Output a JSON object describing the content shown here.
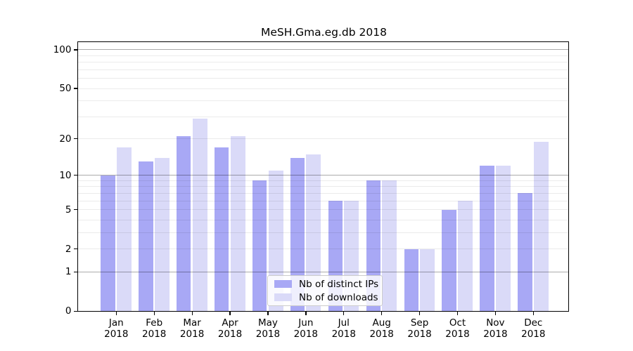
{
  "title": "MeSH.Gma.eg.db 2018",
  "colors": {
    "ips_bar": "#a8a8f5",
    "downloads_bar": "#dadaf8",
    "grid_major": "rgba(0,0,0,0.33)",
    "grid_minor": "rgba(0,0,0,0.08)",
    "axis": "#000000",
    "background": "#ffffff"
  },
  "legend": {
    "entries": [
      {
        "label": "Nb of distinct IPs",
        "series": "ips"
      },
      {
        "label": "Nb of downloads",
        "series": "downloads"
      }
    ]
  },
  "chart_data": {
    "type": "bar",
    "title": "MeSH.Gma.eg.db 2018",
    "categories": [
      "Jan",
      "Feb",
      "Mar",
      "Apr",
      "May",
      "Jun",
      "Jul",
      "Aug",
      "Sep",
      "Oct",
      "Nov",
      "Dec"
    ],
    "category_sublabel": "2018",
    "series": [
      {
        "name": "Nb of distinct IPs",
        "values": [
          10,
          13,
          21,
          17,
          9,
          14,
          6,
          9,
          2,
          5,
          12,
          7
        ]
      },
      {
        "name": "Nb of downloads",
        "values": [
          17,
          14,
          29,
          21,
          11,
          15,
          6,
          9,
          2,
          6,
          12,
          19
        ]
      }
    ],
    "xlabel": "",
    "ylabel": "",
    "yscale": "log1p",
    "ytick_labels": [
      0,
      1,
      2,
      5,
      10,
      20,
      50,
      100
    ],
    "grid_major_values": [
      1,
      10,
      100
    ],
    "grid_minor_values": [
      2,
      3,
      4,
      5,
      6,
      7,
      8,
      9,
      20,
      30,
      40,
      50,
      60,
      70,
      80,
      90
    ],
    "ylim": [
      0,
      115
    ],
    "grid": "on",
    "grid_over_bars": true,
    "legend_position": "bottom-center"
  }
}
